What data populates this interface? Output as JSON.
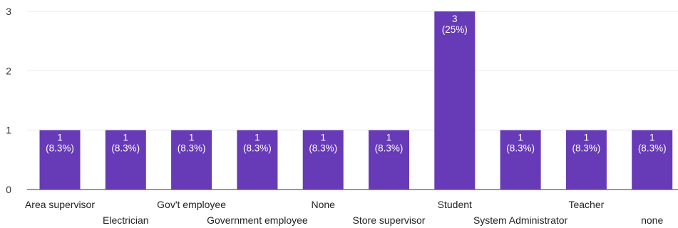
{
  "chart_data": {
    "type": "bar",
    "categories": [
      "Area supervisor",
      "Electrician",
      "Gov't employee",
      "Government employee",
      "None",
      "Store supervisor",
      "Student",
      "System Administrator",
      "Teacher",
      "none"
    ],
    "values": [
      1,
      1,
      1,
      1,
      1,
      1,
      3,
      1,
      1,
      1
    ],
    "value_labels": [
      [
        "1",
        "(8.3%)"
      ],
      [
        "1",
        "(8.3%)"
      ],
      [
        "1",
        "(8.3%)"
      ],
      [
        "1",
        "(8.3%)"
      ],
      [
        "1",
        "(8.3%)"
      ],
      [
        "1",
        "(8.3%)"
      ],
      [
        "3",
        "(25%)"
      ],
      [
        "1",
        "(8.3%)"
      ],
      [
        "1",
        "(8.3%)"
      ],
      [
        "1",
        "(8.3%)"
      ]
    ],
    "y_ticks": [
      "0",
      "1",
      "2",
      "3"
    ],
    "ylim": [
      0,
      3
    ],
    "grid": true,
    "bar_color": "#673ab7",
    "title": "",
    "xlabel": "",
    "ylabel": ""
  }
}
